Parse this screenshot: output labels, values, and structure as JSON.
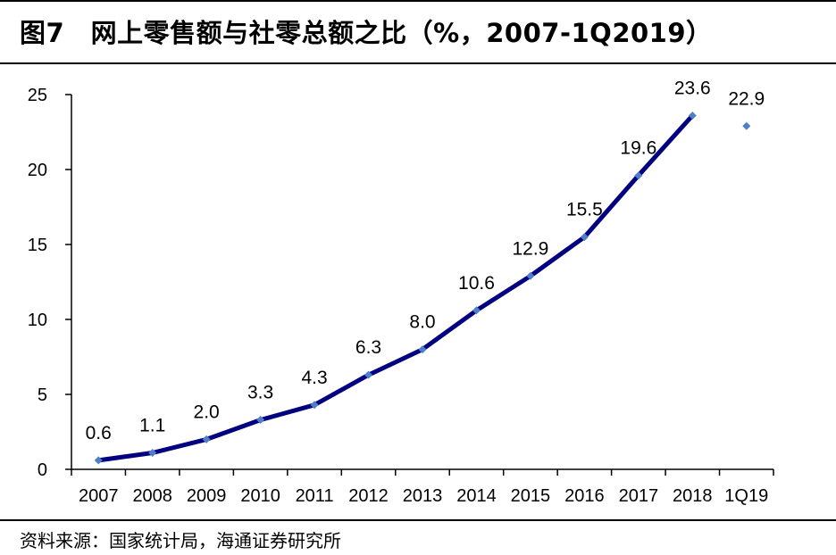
{
  "header": {
    "title": "图7　网上零售额与社零总额之比（%，2007-1Q2019）"
  },
  "footer": {
    "source": "资料来源：国家统计局，海通证券研究所"
  },
  "colors": {
    "line": "#000080",
    "marker": "#4F7FC6",
    "axis": "#000000"
  },
  "chart_data": {
    "type": "line",
    "title": "图7　网上零售额与社零总额之比（%，2007-1Q2019）",
    "xlabel": "",
    "ylabel": "",
    "ylim": [
      0,
      25
    ],
    "yticks": [
      0,
      5,
      10,
      15,
      20,
      25
    ],
    "grid": false,
    "categories": [
      "2007",
      "2008",
      "2009",
      "2010",
      "2011",
      "2012",
      "2013",
      "2014",
      "2015",
      "2016",
      "2017",
      "2018",
      "1Q19"
    ],
    "series": [
      {
        "x": [
          "2007",
          "2008",
          "2009",
          "2010",
          "2011",
          "2012",
          "2013",
          "2014",
          "2015",
          "2016",
          "2017",
          "2018"
        ],
        "values": [
          0.6,
          1.1,
          2.0,
          3.3,
          4.3,
          6.3,
          8.0,
          10.6,
          12.9,
          15.5,
          19.6,
          23.6
        ],
        "labels": [
          "0.6",
          "1.1",
          "2.0",
          "3.3",
          "4.3",
          "6.3",
          "8.0",
          "10.6",
          "12.9",
          "15.5",
          "19.6",
          "23.6"
        ],
        "style": "line-with-markers"
      },
      {
        "x": [
          "1Q19"
        ],
        "values": [
          22.9
        ],
        "labels": [
          "22.9"
        ],
        "style": "marker-only"
      }
    ]
  }
}
